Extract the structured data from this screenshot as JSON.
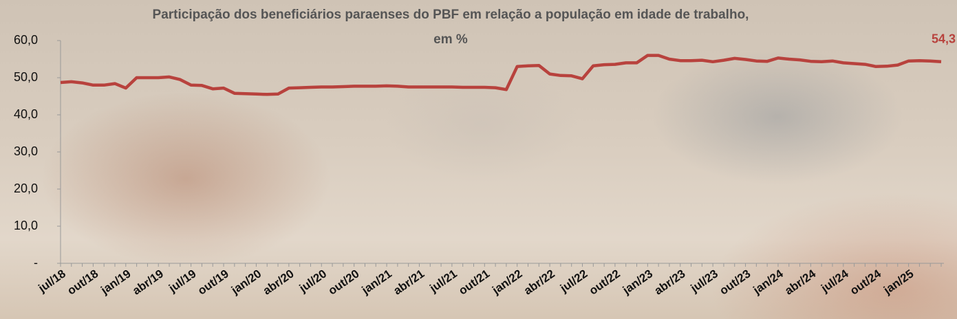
{
  "chart_data": {
    "type": "line",
    "title": [
      "Participação dos beneficiários paraenses do PBF em relação a população em idade de trabalho,",
      "em %"
    ],
    "categories": [
      "jul/18",
      null,
      null,
      "out/18",
      null,
      null,
      "jan/19",
      null,
      null,
      "abr/19",
      null,
      null,
      "jul/19",
      null,
      null,
      "out/19",
      null,
      null,
      "jan/20",
      null,
      null,
      "abr/20",
      null,
      null,
      "jul/20",
      null,
      null,
      "out/20",
      null,
      null,
      "jan/21",
      null,
      null,
      "abr/21",
      null,
      null,
      "jul/21",
      null,
      null,
      "out/21",
      null,
      null,
      "jan/22",
      null,
      null,
      "abr/22",
      null,
      null,
      "jul/22",
      null,
      null,
      "out/22",
      null,
      null,
      "jan/23",
      null,
      null,
      "abr/23",
      null,
      null,
      "jul/23",
      null,
      null,
      "out/23",
      null,
      null,
      "jan/24",
      null,
      null,
      "abr/24",
      null,
      null,
      "jul/24",
      null,
      null,
      "out/24",
      null,
      null,
      "jan/25",
      null,
      null,
      null
    ],
    "series": [
      {
        "color": "#b8423d",
        "values": [
          48.7,
          48.9,
          48.6,
          48.0,
          48.0,
          48.4,
          47.2,
          50.0,
          50.0,
          50.0,
          50.2,
          49.5,
          48.0,
          47.9,
          47.0,
          47.2,
          45.8,
          45.7,
          45.6,
          45.5,
          45.6,
          47.2,
          47.3,
          47.4,
          47.5,
          47.5,
          47.6,
          47.7,
          47.7,
          47.7,
          47.8,
          47.7,
          47.5,
          47.5,
          47.5,
          47.5,
          47.5,
          47.4,
          47.4,
          47.4,
          47.3,
          46.8,
          53.0,
          53.2,
          53.3,
          51.0,
          50.6,
          50.5,
          49.7,
          53.2,
          53.5,
          53.6,
          54.0,
          54.0,
          56.0,
          56.0,
          55.0,
          54.6,
          54.6,
          54.7,
          54.3,
          54.7,
          55.2,
          54.9,
          54.5,
          54.4,
          55.3,
          55.0,
          54.8,
          54.4,
          54.3,
          54.5,
          54.0,
          53.8,
          53.6,
          53.0,
          53.1,
          53.4,
          54.5,
          54.6,
          54.5,
          54.3
        ],
        "value_labels": [
          null,
          null,
          null,
          null,
          null,
          null,
          null,
          null,
          null,
          null,
          null,
          null,
          null,
          null,
          null,
          null,
          null,
          null,
          null,
          null,
          null,
          null,
          null,
          null,
          null,
          null,
          null,
          null,
          null,
          null,
          null,
          null,
          null,
          null,
          null,
          null,
          null,
          null,
          null,
          null,
          null,
          null,
          null,
          null,
          null,
          null,
          null,
          null,
          null,
          null,
          null,
          null,
          null,
          null,
          null,
          null,
          null,
          null,
          null,
          null,
          null,
          null,
          null,
          null,
          null,
          null,
          null,
          null,
          null,
          null,
          null,
          null,
          null,
          null,
          null,
          null,
          null,
          null,
          null,
          null,
          null,
          "54,3"
        ]
      }
    ],
    "ylim": [
      0,
      60
    ],
    "yticks": [
      {
        "value": 0,
        "label": "-"
      },
      {
        "value": 10,
        "label": "10,0"
      },
      {
        "value": 20,
        "label": "20,0"
      },
      {
        "value": 30,
        "label": "30,0"
      },
      {
        "value": 40,
        "label": "40,0"
      },
      {
        "value": 50,
        "label": "50,0"
      },
      {
        "value": 60,
        "label": "60,0"
      }
    ],
    "grid": false
  }
}
